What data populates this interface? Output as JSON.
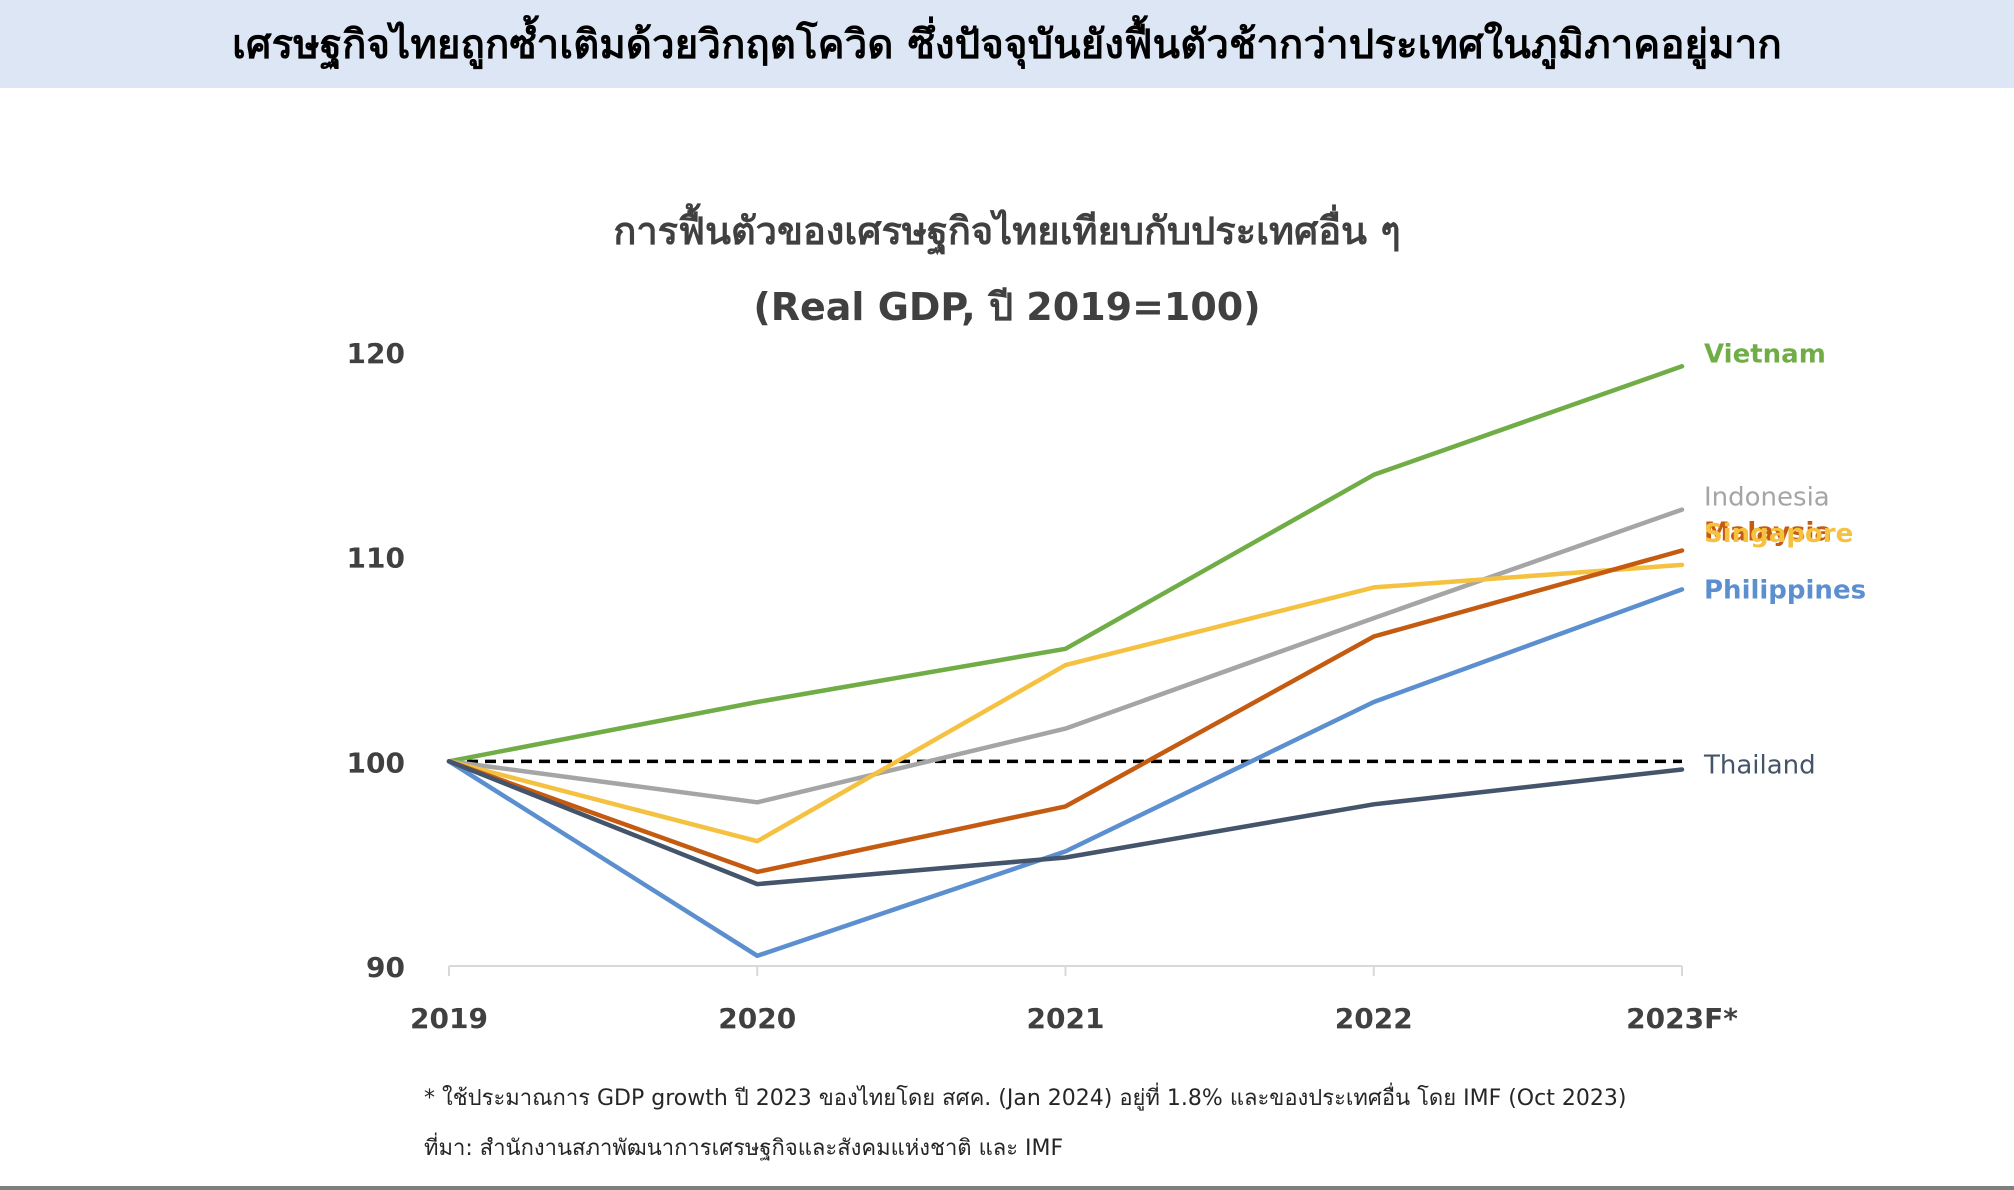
{
  "header": {
    "title": "เศรษฐกิจไทยถูกซ้ำเติมด้วยวิกฤตโควิด ซึ่งปัจจุบันยังฟื้นตัวช้ากว่าประเทศในภูมิภาคอยู่มาก"
  },
  "chart_data": {
    "type": "line",
    "title": "การฟื้นตัวของเศรษฐกิจไทยเทียบกับประเทศอื่น ๆ",
    "subtitle": "(Real GDP, ปี 2019=100)",
    "xlabel": "",
    "ylabel": "",
    "categories": [
      "2019",
      "2020",
      "2021",
      "2022",
      "2023F*"
    ],
    "ylim": [
      90,
      120
    ],
    "yticks": [
      "90",
      "100",
      "110",
      "120"
    ],
    "grid": false,
    "legend": "labels at line ends (right)",
    "reference_line": {
      "value": 100,
      "style": "dashed",
      "color": "#000000"
    },
    "series": [
      {
        "name": "Vietnam",
        "color": "#70ad47",
        "values": [
          100,
          102.9,
          105.5,
          114.0,
          119.3
        ]
      },
      {
        "name": "Indonesia",
        "color": "#a5a5a5",
        "values": [
          100,
          98.0,
          101.6,
          107.0,
          112.3
        ]
      },
      {
        "name": "Malaysia",
        "color": "#c55a11",
        "values": [
          100,
          94.6,
          97.8,
          106.1,
          110.3
        ]
      },
      {
        "name": "Singapore",
        "color": "#f4c141",
        "values": [
          100,
          96.1,
          104.7,
          108.5,
          109.6
        ]
      },
      {
        "name": "Philippines",
        "color": "#5b8fcf",
        "values": [
          100,
          90.5,
          95.6,
          102.9,
          108.4
        ]
      },
      {
        "name": "Thailand",
        "color": "#44546a",
        "values": [
          100,
          94.0,
          95.3,
          97.9,
          99.6
        ]
      }
    ]
  },
  "footnotes": {
    "note1": "* ใช้ประมาณการ GDP growth ปี 2023 ของไทยโดย สศค. (Jan 2024) อยู่ที่ 1.8% และของประเทศอื่น โดย IMF (Oct 2023)",
    "note2": "ที่มา: สำนักงานสภาพัฒนาการเศรษฐกิจและสังคมแห่งชาติ และ IMF"
  }
}
